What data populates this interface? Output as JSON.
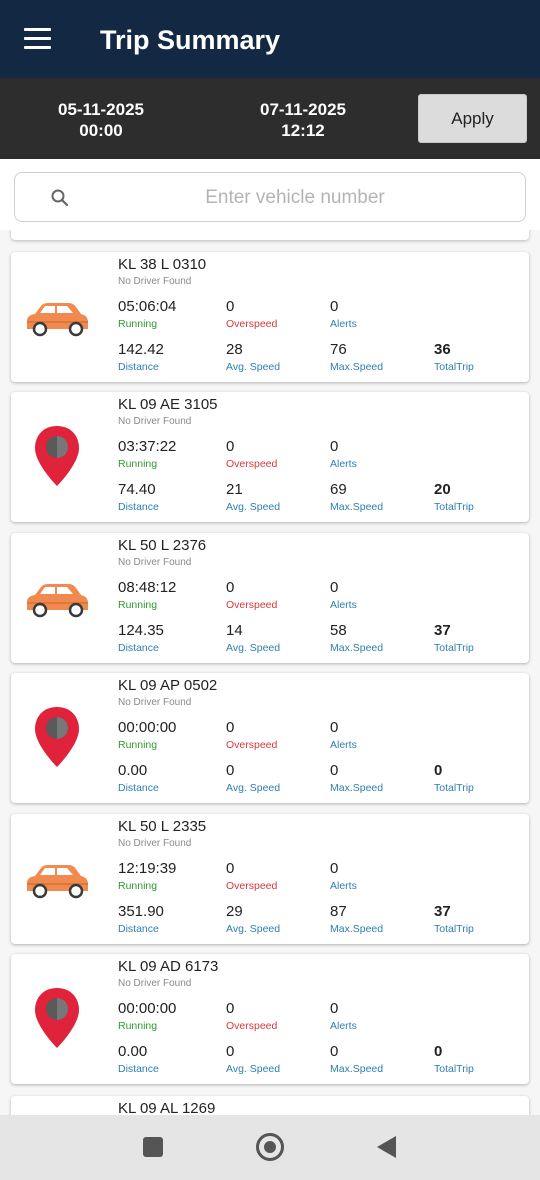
{
  "header": {
    "title": "Trip Summary",
    "menu_icon": "hamburger-menu-icon"
  },
  "date_range": {
    "from_date": "05-11-2025",
    "from_time": "00:00",
    "to_date": "07-11-2025",
    "to_time": "12:12",
    "apply_label": "Apply"
  },
  "search": {
    "placeholder": "Enter vehicle number",
    "value": "",
    "icon": "search-icon"
  },
  "labels": {
    "running": "Running",
    "overspeed": "Overspeed",
    "alerts": "Alerts",
    "distance": "Distance",
    "avg_speed": "Avg. Speed",
    "max_speed": "Max.Speed",
    "total_trip": "TotalTrip"
  },
  "vehicles": [
    {
      "number": "KL 38 L 0310",
      "driver": "No Driver Found",
      "icon": "car-icon",
      "running": "05:06:04",
      "overspeed": "0",
      "alerts": "0",
      "distance": "142.42",
      "avg_speed": "28",
      "max_speed": "76",
      "total_trip": "36"
    },
    {
      "number": "KL 09 AE 3105",
      "driver": "No Driver Found",
      "icon": "map-pin-icon",
      "running": "03:37:22",
      "overspeed": "0",
      "alerts": "0",
      "distance": "74.40",
      "avg_speed": "21",
      "max_speed": "69",
      "total_trip": "20"
    },
    {
      "number": "KL 50 L 2376",
      "driver": "No Driver Found",
      "icon": "car-icon",
      "running": "08:48:12",
      "overspeed": "0",
      "alerts": "0",
      "distance": "124.35",
      "avg_speed": "14",
      "max_speed": "58",
      "total_trip": "37"
    },
    {
      "number": "KL 09 AP 0502",
      "driver": "No Driver Found",
      "icon": "map-pin-icon",
      "running": "00:00:00",
      "overspeed": "0",
      "alerts": "0",
      "distance": "0.00",
      "avg_speed": "0",
      "max_speed": "0",
      "total_trip": "0"
    },
    {
      "number": "KL 50 L 2335",
      "driver": "No Driver Found",
      "icon": "car-icon",
      "running": "12:19:39",
      "overspeed": "0",
      "alerts": "0",
      "distance": "351.90",
      "avg_speed": "29",
      "max_speed": "87",
      "total_trip": "37"
    },
    {
      "number": "KL 09 AD 6173",
      "driver": "No Driver Found",
      "icon": "map-pin-icon",
      "running": "00:00:00",
      "overspeed": "0",
      "alerts": "0",
      "distance": "0.00",
      "avg_speed": "0",
      "max_speed": "0",
      "total_trip": "0"
    },
    {
      "number": "KL 09 AL 1269"
    }
  ],
  "nav": {
    "recents_icon": "square-recents-icon",
    "home_icon": "circle-home-icon",
    "back_icon": "triangle-back-icon"
  },
  "colors": {
    "appbar": "#132843",
    "datebar": "#2d2d2d",
    "running": "#2e9b2e",
    "overspeed": "#d63a3a",
    "label": "#2d7fb0",
    "car": "#f08a50",
    "pin": "#e0223a"
  }
}
